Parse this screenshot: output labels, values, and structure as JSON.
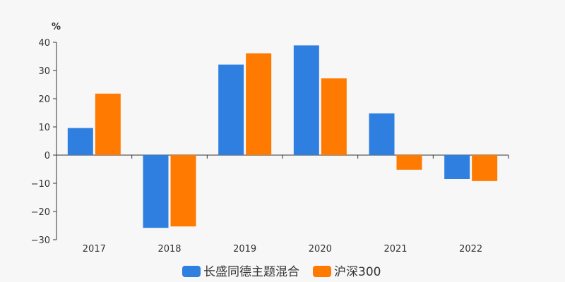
{
  "chart_data": {
    "type": "bar",
    "title": "",
    "xlabel": "",
    "ylabel": "%",
    "categories": [
      "2017",
      "2018",
      "2019",
      "2020",
      "2021",
      "2022"
    ],
    "series": [
      {
        "name": "长盛同德主题混合",
        "color": "#2e7fe0",
        "values": [
          9.6,
          -25.8,
          32.1,
          38.9,
          14.8,
          -8.5
        ]
      },
      {
        "name": "沪深300",
        "color": "#ff7a00",
        "values": [
          21.8,
          -25.3,
          36.1,
          27.2,
          -5.2,
          -9.2
        ]
      }
    ],
    "ylim": [
      -30,
      40
    ],
    "yticks": [
      -30,
      -20,
      -10,
      0,
      10,
      20,
      30,
      40
    ],
    "ytick_labels": [
      "−30",
      "−20",
      "−10",
      "0",
      "10",
      "20",
      "30",
      "40"
    ],
    "grid": false,
    "legend_position": "bottom"
  }
}
